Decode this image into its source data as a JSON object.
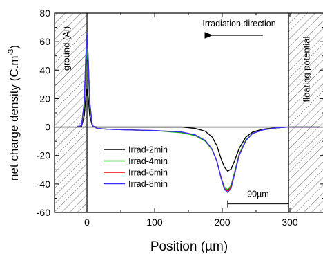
{
  "chart_data": {
    "type": "line",
    "xlabel": "Position (µm)",
    "ylabel": "net charge density (C.m",
    "ylabel_sup": "-3",
    "ylabel_close": ")",
    "xlim": [
      -48,
      350
    ],
    "ylim": [
      -60,
      80
    ],
    "x_ticks": [
      0,
      100,
      200,
      300
    ],
    "x_tick_labels": [
      "0",
      "100",
      "200",
      "300"
    ],
    "y_ticks": [
      80,
      60,
      40,
      20,
      0,
      -20,
      -40,
      -60
    ],
    "y_tick_labels": [
      "80",
      "60",
      "40",
      "20",
      "0",
      "-20",
      "-40",
      "-60"
    ],
    "x_minor_step": 50,
    "y_minor_step": 10,
    "grid": false,
    "legend_position": "lower-left",
    "annotations": {
      "left_region": "ground (Al)",
      "right_region": "floating potential",
      "direction": "Irradiation direction",
      "span_label": "90µm",
      "span_from": 208,
      "span_to": 298
    },
    "regions": {
      "left_end": 0,
      "right_start": 298
    },
    "series": [
      {
        "name": "Irrad-2min",
        "color": "#000000",
        "x": [
          -15,
          -8,
          -4,
          -2,
          0,
          2,
          4,
          8,
          15,
          30,
          60,
          100,
          140,
          160,
          175,
          185,
          192,
          198,
          203,
          208,
          213,
          218,
          225,
          235,
          245,
          260,
          280,
          298,
          345
        ],
        "y": [
          0,
          0.5,
          8,
          20,
          27,
          20,
          8,
          0.5,
          0,
          0,
          0,
          0,
          0,
          -1,
          -3,
          -7,
          -13,
          -22,
          -28,
          -31,
          -29.5,
          -24,
          -15,
          -7,
          -3.5,
          -1.5,
          -0.5,
          0,
          0
        ]
      },
      {
        "name": "Irrad-4min",
        "color": "#00cc00",
        "x": [
          -15,
          -8,
          -4,
          -2,
          0,
          2,
          4,
          8,
          15,
          30,
          60,
          100,
          140,
          160,
          175,
          185,
          192,
          198,
          203,
          208,
          213,
          218,
          225,
          235,
          245,
          260,
          280,
          298,
          345
        ],
        "y": [
          0,
          1,
          15,
          40,
          57,
          40,
          15,
          1,
          -1,
          -1.5,
          -2,
          -2.5,
          -4,
          -6,
          -10,
          -16,
          -24,
          -35,
          -42,
          -44,
          -41,
          -32,
          -19,
          -9,
          -4.5,
          -2,
          -0.6,
          0,
          0
        ]
      },
      {
        "name": "Irrad-6min",
        "color": "#ff0000",
        "x": [
          -15,
          -8,
          -4,
          -2,
          0,
          2,
          4,
          8,
          15,
          30,
          60,
          100,
          140,
          160,
          175,
          185,
          192,
          198,
          203,
          208,
          213,
          218,
          225,
          235,
          245,
          260,
          280,
          298,
          345
        ],
        "y": [
          0,
          1,
          17,
          46,
          65,
          46,
          17,
          1,
          -1,
          -1.5,
          -2,
          -2.5,
          -3.5,
          -5.5,
          -9.5,
          -15.5,
          -24,
          -35,
          -43,
          -45,
          -42,
          -33,
          -19.5,
          -9.5,
          -4.5,
          -2,
          -0.6,
          0,
          0
        ]
      },
      {
        "name": "Irrad-8min",
        "color": "#3333ff",
        "x": [
          -15,
          -8,
          -4,
          -2,
          0,
          2,
          4,
          8,
          15,
          30,
          60,
          100,
          140,
          160,
          175,
          185,
          192,
          198,
          203,
          208,
          213,
          218,
          225,
          235,
          245,
          260,
          280,
          298,
          345
        ],
        "y": [
          0,
          1,
          17.5,
          47,
          66,
          47,
          17.5,
          1,
          -1,
          -1.5,
          -2,
          -2.5,
          -3.5,
          -5.5,
          -9.5,
          -15.5,
          -24,
          -35.5,
          -43.5,
          -46,
          -43,
          -33.5,
          -20,
          -9.5,
          -4.5,
          -2,
          -0.6,
          0,
          0
        ]
      }
    ]
  }
}
